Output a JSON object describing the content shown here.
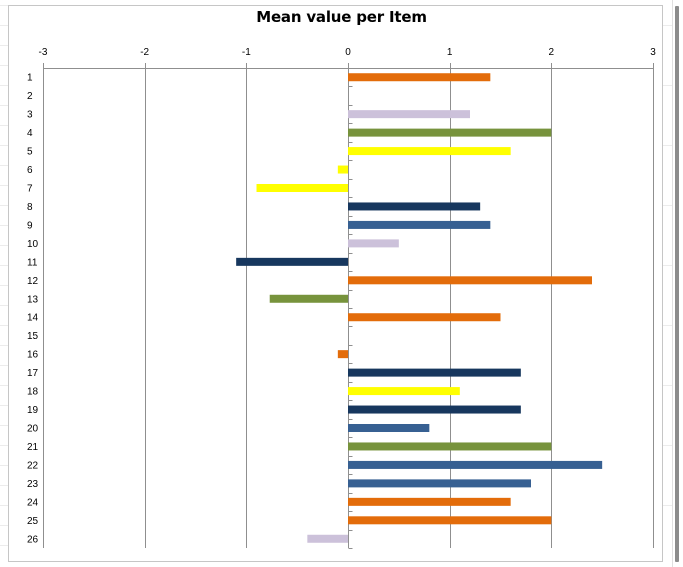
{
  "chart_data": {
    "type": "bar",
    "orientation": "horizontal",
    "title": "Mean value per Item",
    "xlabel": "",
    "ylabel": "",
    "xlim": [
      -3,
      3
    ],
    "x_ticks": [
      -3,
      -2,
      -1,
      0,
      1,
      2,
      3
    ],
    "x_axis_position": "top",
    "categories": [
      "1",
      "2",
      "3",
      "4",
      "5",
      "6",
      "7",
      "8",
      "9",
      "10",
      "11",
      "12",
      "13",
      "14",
      "15",
      "16",
      "17",
      "18",
      "19",
      "20",
      "21",
      "22",
      "23",
      "24",
      "25",
      "26"
    ],
    "values": [
      1.4,
      null,
      1.2,
      2.0,
      1.6,
      -0.1,
      -0.9,
      1.3,
      1.4,
      0.5,
      -1.1,
      2.4,
      -0.77,
      1.5,
      null,
      -0.1,
      1.7,
      1.1,
      1.7,
      0.8,
      2.0,
      2.5,
      1.8,
      1.6,
      2.0,
      -0.4
    ],
    "bar_colors": [
      "#e36c0a",
      "#e36c0a",
      "#ccc1da",
      "#77933c",
      "#ffff00",
      "#ffff00",
      "#ffff00",
      "#17375e",
      "#376092",
      "#ccc1da",
      "#17375e",
      "#e36c0a",
      "#77933c",
      "#e36c0a",
      "#e36c0a",
      "#e36c0a",
      "#17375e",
      "#ffff00",
      "#17375e",
      "#376092",
      "#77933c",
      "#376092",
      "#376092",
      "#e36c0a",
      "#e36c0a",
      "#ccc1da"
    ],
    "grid": "vertical major gridlines",
    "legend": "none"
  }
}
